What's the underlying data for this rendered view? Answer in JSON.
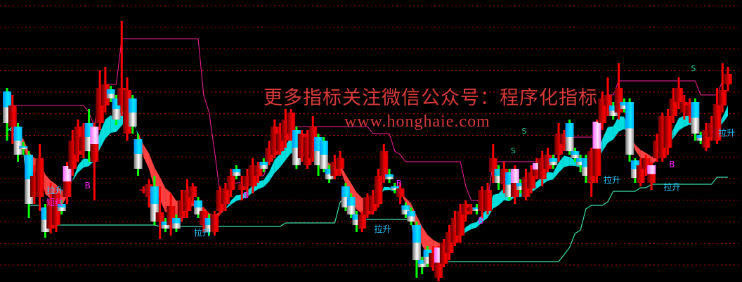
{
  "watermark": {
    "line1": "更多指标关注微信公众号：程序化指标",
    "line2": "www.honghaie.com"
  },
  "colors": {
    "background": "#000000",
    "grid": "#c00000",
    "up_body_dark": "#700000",
    "up_body_light": "#ff0000",
    "down_top": "#00d8ff",
    "down_bottom": "#e0e0e0",
    "special_top": "#ff90ff",
    "up_wick": "#ff0000",
    "down_wick": "#00ff00",
    "ribbon_up": "#00dede",
    "ribbon_down": "#ff4040",
    "resistance_line": "#ff20a0",
    "support_line": "#40e0b0",
    "label_lasheng": "#20c8ff",
    "label_b": "#ff20ff",
    "label_s": "#30d0a0"
  },
  "chart_data": {
    "type": "candlestick",
    "title": "",
    "xlabel": "",
    "ylabel": "",
    "ylim": [
      0,
      400
    ],
    "grid": "horizontal dotted",
    "candles": [
      [
        270,
        275,
        200,
        225
      ],
      [
        220,
        265,
        195,
        250
      ],
      [
        220,
        225,
        170,
        180
      ],
      [
        192,
        198,
        180,
        188
      ],
      [
        180,
        185,
        90,
        110
      ],
      [
        120,
        165,
        110,
        150
      ],
      [
        120,
        195,
        100,
        175
      ],
      [
        105,
        110,
        62,
        70
      ],
      [
        75,
        140,
        68,
        115
      ],
      [
        80,
        135,
        70,
        125
      ],
      [
        110,
        115,
        95,
        100
      ],
      [
        120,
        170,
        110,
        164,
        "p"
      ],
      [
        160,
        215,
        150,
        200
      ],
      [
        180,
        230,
        170,
        220
      ],
      [
        185,
        225,
        175,
        205
      ],
      [
        225,
        245,
        170,
        185
      ],
      [
        170,
        225,
        115,
        220,
        "p"
      ],
      [
        225,
        300,
        215,
        275
      ],
      [
        250,
        305,
        240,
        280
      ],
      [
        273,
        278,
        255,
        260
      ],
      [
        260,
        265,
        222,
        230
      ],
      [
        250,
        370,
        235,
        275
      ],
      [
        210,
        290,
        200,
        272
      ],
      [
        260,
        265,
        210,
        220
      ],
      [
        202,
        210,
        150,
        160
      ],
      [
        130,
        135,
        125,
        131
      ],
      [
        120,
        145,
        105,
        138
      ],
      [
        135,
        150,
        80,
        85
      ],
      [
        85,
        135,
        60,
        98
      ],
      [
        85,
        90,
        70,
        75
      ],
      [
        80,
        125,
        65,
        107
      ],
      [
        90,
        95,
        70,
        75
      ],
      [
        90,
        130,
        85,
        115
      ],
      [
        100,
        145,
        90,
        130
      ],
      [
        120,
        140,
        110,
        135
      ],
      [
        115,
        120,
        90,
        95
      ],
      [
        80,
        105,
        70,
        100
      ],
      [
        90,
        95,
        65,
        70
      ],
      [
        70,
        100,
        65,
        95
      ],
      [
        100,
        135,
        95,
        130
      ],
      [
        110,
        140,
        100,
        132
      ],
      [
        130,
        160,
        120,
        150
      ],
      [
        160,
        165,
        145,
        150
      ],
      [
        130,
        150,
        115,
        138
      ],
      [
        135,
        160,
        120,
        150
      ],
      [
        135,
        175,
        125,
        165
      ],
      [
        150,
        170,
        140,
        165
      ],
      [
        170,
        175,
        155,
        160
      ],
      [
        170,
        200,
        165,
        190
      ],
      [
        180,
        230,
        175,
        220
      ],
      [
        185,
        225,
        180,
        210
      ],
      [
        200,
        245,
        190,
        230
      ],
      [
        210,
        245,
        200,
        240
      ],
      [
        215,
        220,
        160,
        165
      ],
      [
        175,
        215,
        170,
        210
      ],
      [
        165,
        215,
        160,
        205
      ],
      [
        175,
        235,
        170,
        220
      ],
      [
        205,
        210,
        150,
        165
      ],
      [
        200,
        205,
        155,
        160
      ],
      [
        160,
        165,
        140,
        145
      ],
      [
        150,
        180,
        145,
        170
      ],
      [
        160,
        185,
        150,
        175
      ],
      [
        135,
        140,
        100,
        105
      ],
      [
        120,
        125,
        90,
        95
      ],
      [
        95,
        100,
        70,
        80
      ],
      [
        75,
        100,
        70,
        95
      ],
      [
        95,
        125,
        90,
        120
      ],
      [
        100,
        130,
        95,
        122
      ],
      [
        110,
        160,
        105,
        150
      ],
      [
        150,
        195,
        140,
        185
      ],
      [
        152,
        160,
        140,
        145
      ],
      [
        135,
        140,
        125,
        130
      ],
      [
        120,
        140,
        110,
        132
      ],
      [
        108,
        112,
        90,
        95
      ],
      [
        100,
        105,
        80,
        85
      ],
      [
        80,
        85,
        5,
        30
      ],
      [
        30,
        35,
        10,
        20
      ],
      [
        45,
        50,
        20,
        25
      ],
      [
        20,
        50,
        15,
        40
      ],
      [
        5,
        50,
        0,
        48,
        "p"
      ],
      [
        25,
        60,
        20,
        55
      ],
      [
        40,
        80,
        30,
        70
      ],
      [
        55,
        100,
        50,
        90
      ],
      [
        65,
        110,
        55,
        100
      ],
      [
        95,
        115,
        85,
        110
      ],
      [
        100,
        110,
        95,
        105
      ],
      [
        105,
        110,
        95,
        100
      ],
      [
        100,
        135,
        90,
        130
      ],
      [
        100,
        140,
        95,
        130
      ],
      [
        155,
        195,
        140,
        175
      ],
      [
        160,
        165,
        130,
        140
      ],
      [
        138,
        170,
        125,
        160
      ],
      [
        155,
        160,
        115,
        120
      ],
      [
        120,
        165,
        110,
        160,
        "p"
      ],
      [
        140,
        145,
        125,
        130
      ],
      [
        120,
        160,
        115,
        148
      ],
      [
        132,
        165,
        125,
        155
      ],
      [
        150,
        175,
        145,
        168,
        "p"
      ],
      [
        145,
        185,
        135,
        175
      ],
      [
        160,
        190,
        155,
        180
      ],
      [
        175,
        180,
        160,
        165
      ],
      [
        180,
        225,
        170,
        210
      ],
      [
        195,
        215,
        185,
        210
      ],
      [
        225,
        230,
        180,
        185
      ],
      [
        185,
        190,
        170,
        175
      ],
      [
        175,
        180,
        155,
        165
      ],
      [
        175,
        180,
        140,
        150
      ],
      [
        140,
        190,
        120,
        185
      ],
      [
        150,
        230,
        140,
        227,
        "p"
      ],
      [
        225,
        270,
        215,
        260
      ],
      [
        250,
        290,
        235,
        265
      ],
      [
        250,
        255,
        230,
        235
      ],
      [
        240,
        310,
        230,
        275
      ],
      [
        255,
        260,
        240,
        245
      ],
      [
        255,
        260,
        170,
        180
      ],
      [
        172,
        175,
        140,
        147
      ],
      [
        140,
        175,
        135,
        165
      ],
      [
        160,
        180,
        150,
        175
      ],
      [
        140,
        170,
        130,
        165,
        "p"
      ],
      [
        175,
        210,
        170,
        200
      ],
      [
        175,
        240,
        170,
        235
      ],
      [
        190,
        245,
        180,
        235
      ],
      [
        235,
        275,
        225,
        260
      ],
      [
        255,
        290,
        245,
        275
      ],
      [
        240,
        265,
        230,
        255
      ],
      [
        235,
        260,
        225,
        250
      ],
      [
        255,
        260,
        200,
        210
      ],
      [
        208,
        212,
        195,
        200
      ],
      [
        190,
        225,
        185,
        215
      ],
      [
        205,
        235,
        200,
        225
      ],
      [
        200,
        275,
        195,
        252
      ],
      [
        250,
        310,
        240,
        272
      ],
      [
        280,
        305,
        270,
        295
      ]
    ],
    "candle_format": "[open, high, low, close, special]",
    "annotations": [
      {
        "index": 8,
        "text": "拉升",
        "value": 125,
        "kind": "lasheng"
      },
      {
        "index": 8,
        "text": "短线",
        "value": 108,
        "kind": "short"
      },
      {
        "index": 35,
        "text": "拉升",
        "value": 65,
        "kind": "lasheng"
      },
      {
        "index": 68,
        "text": "拉升",
        "value": 70,
        "kind": "lasheng"
      },
      {
        "index": 110,
        "text": "拉升",
        "value": 140,
        "kind": "lasheng"
      },
      {
        "index": 121,
        "text": "拉升",
        "value": 130,
        "kind": "lasheng"
      },
      {
        "index": 131,
        "text": "拉升",
        "value": 207,
        "kind": "lasheng"
      },
      {
        "index": 15,
        "text": "B",
        "value": 132,
        "kind": "b"
      },
      {
        "index": 44,
        "text": "B",
        "value": 118,
        "kind": "b"
      },
      {
        "index": 72,
        "text": "B",
        "value": 135,
        "kind": "b"
      },
      {
        "index": 87,
        "text": "B",
        "value": 82,
        "kind": "b"
      },
      {
        "index": 122,
        "text": "B",
        "value": 162,
        "kind": "b"
      },
      {
        "index": 90,
        "text": "S",
        "value": 150,
        "kind": "s"
      },
      {
        "index": 93,
        "text": "S",
        "value": 182,
        "kind": "s"
      },
      {
        "index": 95,
        "text": "S",
        "value": 210,
        "kind": "s"
      },
      {
        "index": 126,
        "text": "S",
        "value": 299,
        "kind": "s"
      }
    ]
  }
}
